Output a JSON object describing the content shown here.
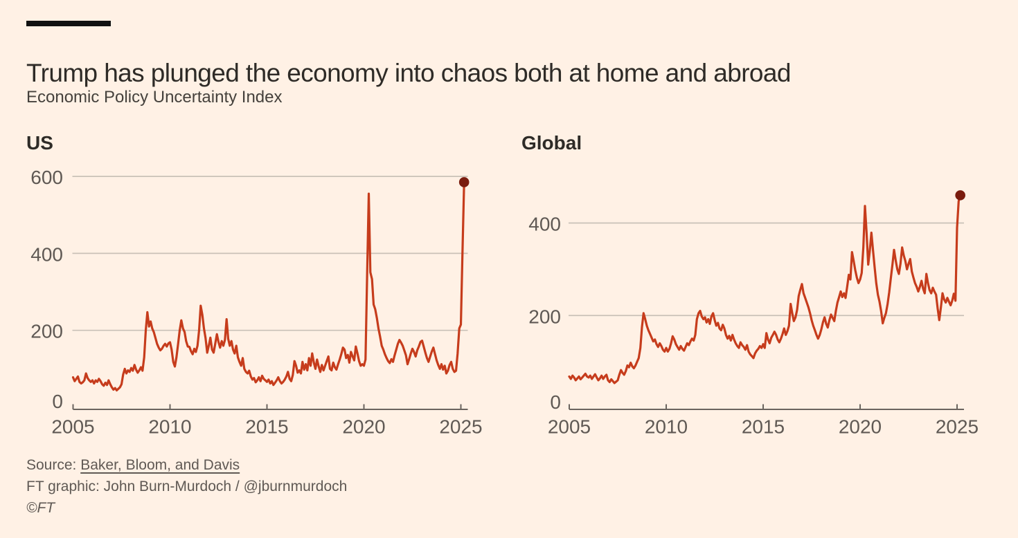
{
  "header": {
    "title": "Trump has plunged the economy into chaos both at home and abroad",
    "subtitle": "Economic Policy Uncertainty Index"
  },
  "footer": {
    "source_prefix": "Source: ",
    "source_link": "Baker, Bloom, and Davis",
    "credit": "FT graphic: John Burn-Murdoch / @jburnmurdoch",
    "copyright": "©FT"
  },
  "colors": {
    "background": "#FFF1E5",
    "top_bar": "#111111",
    "line": "#C63C1C",
    "endpoint_dot": "#7A1C0E",
    "grid": "#C9C1B7",
    "axis": "#6A645E",
    "tick_label": "#5F5954",
    "title_text": "#2E2B27",
    "footer_text": "#5F5954"
  },
  "chart_data": [
    {
      "type": "line",
      "title": "US",
      "x_start": "2005-01",
      "frequency": "monthly",
      "x_ticks": [
        2005,
        2010,
        2015,
        2020,
        2025
      ],
      "y_ticks": [
        0,
        200,
        400,
        600
      ],
      "xlim": [
        2005,
        2025.4
      ],
      "ylim": [
        0,
        680
      ],
      "grid": "horizontal-only",
      "legend": "none",
      "endpoint_dot": true,
      "endpoint_value": 585,
      "values": [
        78,
        68,
        74,
        80,
        66,
        62,
        65,
        70,
        88,
        76,
        70,
        66,
        70,
        62,
        70,
        66,
        74,
        68,
        60,
        56,
        64,
        58,
        70,
        60,
        52,
        46,
        50,
        44,
        48,
        52,
        60,
        85,
        100,
        88,
        96,
        92,
        102,
        95,
        110,
        98,
        90,
        96,
        104,
        95,
        130,
        200,
        247,
        210,
        223,
        205,
        195,
        180,
        165,
        155,
        148,
        152,
        160,
        165,
        158,
        166,
        169,
        150,
        118,
        106,
        130,
        165,
        200,
        226,
        205,
        196,
        172,
        158,
        157,
        146,
        138,
        152,
        144,
        160,
        200,
        264,
        240,
        205,
        180,
        142,
        160,
        181,
        150,
        142,
        165,
        190,
        170,
        155,
        172,
        160,
        175,
        229,
        178,
        160,
        172,
        150,
        140,
        160,
        130,
        118,
        108,
        128,
        100,
        92,
        88,
        95,
        80,
        72,
        76,
        65,
        70,
        78,
        68,
        82,
        74,
        70,
        66,
        72,
        62,
        68,
        58,
        64,
        70,
        78,
        68,
        62,
        66,
        72,
        80,
        92,
        74,
        68,
        84,
        120,
        108,
        90,
        96,
        88,
        118,
        98,
        112,
        96,
        128,
        108,
        140,
        116,
        100,
        124,
        106,
        92,
        110,
        96,
        108,
        120,
        132,
        100,
        96,
        116,
        104,
        98,
        112,
        124,
        138,
        155,
        150,
        128,
        136,
        116,
        144,
        132,
        122,
        158,
        140,
        120,
        108,
        112,
        108,
        124,
        350,
        555,
        351,
        333,
        267,
        255,
        232,
        205,
        184,
        160,
        150,
        138,
        128,
        120,
        115,
        125,
        118,
        135,
        150,
        165,
        175,
        168,
        160,
        148,
        135,
        112,
        125,
        140,
        152,
        144,
        132,
        148,
        158,
        170,
        173,
        158,
        142,
        128,
        118,
        132,
        145,
        155,
        138,
        122,
        110,
        100,
        112,
        98,
        108,
        88,
        95,
        110,
        118,
        100,
        92,
        95,
        140,
        205,
        215,
        400,
        585
      ]
    },
    {
      "type": "line",
      "title": "Global",
      "x_start": "2005-01",
      "frequency": "monthly",
      "x_ticks": [
        2005,
        2010,
        2015,
        2020,
        2025
      ],
      "y_ticks": [
        0,
        200,
        400
      ],
      "xlim": [
        2005,
        2025.4
      ],
      "ylim": [
        0,
        570
      ],
      "grid": "horizontal-only",
      "legend": "none",
      "endpoint_dot": true,
      "endpoint_value": 460,
      "values": [
        68,
        63,
        70,
        66,
        60,
        64,
        68,
        62,
        66,
        70,
        74,
        68,
        66,
        70,
        63,
        68,
        73,
        66,
        60,
        64,
        70,
        63,
        68,
        72,
        60,
        56,
        62,
        58,
        54,
        57,
        60,
        72,
        82,
        76,
        72,
        80,
        92,
        88,
        98,
        90,
        86,
        92,
        100,
        108,
        130,
        175,
        205,
        192,
        178,
        168,
        160,
        152,
        144,
        148,
        138,
        132,
        140,
        134,
        126,
        122,
        130,
        122,
        128,
        140,
        155,
        148,
        138,
        132,
        126,
        134,
        128,
        124,
        132,
        140,
        136,
        144,
        150,
        146,
        158,
        192,
        205,
        210,
        198,
        192,
        196,
        185,
        192,
        182,
        198,
        205,
        190,
        178,
        184,
        172,
        168,
        180,
        172,
        158,
        150,
        156,
        146,
        158,
        148,
        140,
        134,
        130,
        142,
        136,
        132,
        126,
        136,
        122,
        116,
        112,
        108,
        118,
        124,
        128,
        134,
        130,
        138,
        130,
        162,
        148,
        140,
        152,
        158,
        165,
        158,
        148,
        142,
        150,
        160,
        172,
        158,
        166,
        178,
        225,
        205,
        188,
        196,
        212,
        242,
        256,
        268,
        248,
        238,
        228,
        218,
        205,
        190,
        178,
        168,
        158,
        150,
        158,
        170,
        185,
        196,
        182,
        174,
        190,
        202,
        195,
        188,
        210,
        228,
        240,
        252,
        240,
        248,
        238,
        262,
        288,
        278,
        337,
        318,
        298,
        282,
        270,
        278,
        292,
        348,
        437,
        380,
        310,
        340,
        379,
        340,
        304,
        270,
        245,
        230,
        210,
        183,
        195,
        205,
        225,
        250,
        280,
        310,
        342,
        320,
        300,
        290,
        312,
        347,
        330,
        318,
        300,
        312,
        322,
        295,
        282,
        270,
        262,
        252,
        262,
        275,
        258,
        248,
        290,
        270,
        255,
        248,
        260,
        252,
        245,
        215,
        190,
        218,
        248,
        235,
        228,
        238,
        230,
        222,
        232,
        247,
        232,
        390,
        447,
        460
      ]
    }
  ]
}
